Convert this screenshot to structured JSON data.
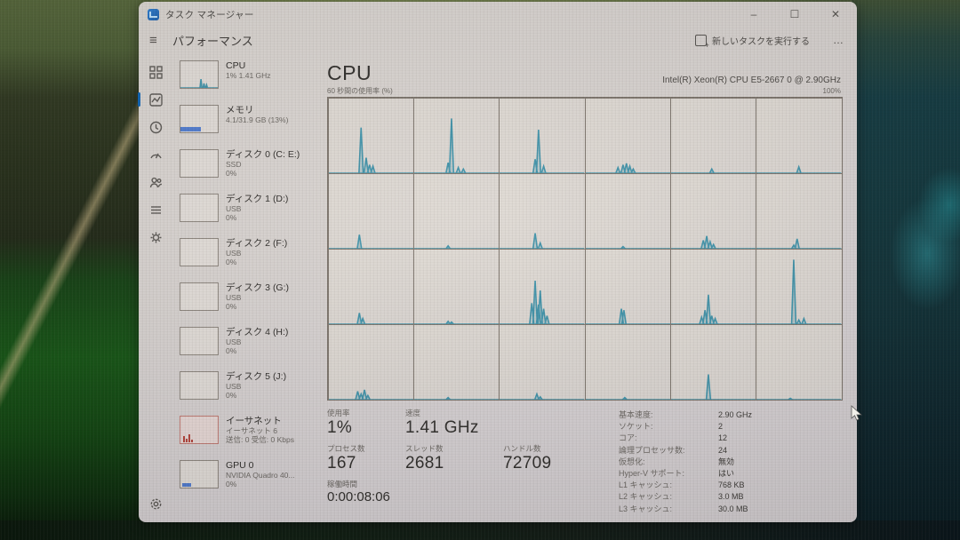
{
  "window": {
    "title": "タスク マネージャー",
    "controls": {
      "minimize": "–",
      "maximize": "☐",
      "close": "✕"
    }
  },
  "header": {
    "page_title": "パフォーマンス",
    "run_new_task_label": "新しいタスクを実行する",
    "more_label": "…"
  },
  "nav": {
    "icons": [
      "processes-grid-icon",
      "performance-chart-icon",
      "app-history-clock-icon",
      "startup-apps-icon",
      "users-icon",
      "details-list-icon",
      "services-icon",
      "settings-gear-icon"
    ],
    "active": "performance-chart-icon"
  },
  "sidebar": {
    "items": [
      {
        "id": "cpu",
        "label": "CPU",
        "line2": "1% 1.41 GHz",
        "line3": "",
        "thumb": "cpu"
      },
      {
        "id": "memory",
        "label": "メモリ",
        "line2": "4.1/31.9 GB (13%)",
        "line3": "",
        "thumb": "mem"
      },
      {
        "id": "disk0",
        "label": "ディスク 0 (C: E:)",
        "line2": "SSD",
        "line3": "0%",
        "thumb": "flat"
      },
      {
        "id": "disk1",
        "label": "ディスク 1 (D:)",
        "line2": "USB",
        "line3": "0%",
        "thumb": "flat"
      },
      {
        "id": "disk2",
        "label": "ディスク 2 (F:)",
        "line2": "USB",
        "line3": "0%",
        "thumb": "flat"
      },
      {
        "id": "disk3",
        "label": "ディスク 3 (G:)",
        "line2": "USB",
        "line3": "0%",
        "thumb": "flat"
      },
      {
        "id": "disk4",
        "label": "ディスク 4 (H:)",
        "line2": "USB",
        "line3": "0%",
        "thumb": "flat"
      },
      {
        "id": "disk5",
        "label": "ディスク 5 (J:)",
        "line2": "USB",
        "line3": "0%",
        "thumb": "flat"
      },
      {
        "id": "ethernet",
        "label": "イーサネット",
        "line2": "イーサネット 6",
        "line3": "送信: 0 受信: 0 Kbps",
        "thumb": "eth"
      },
      {
        "id": "gpu0",
        "label": "GPU 0",
        "line2": "NVIDIA Quadro 40...",
        "line3": "0%",
        "thumb": "gpu"
      }
    ]
  },
  "main": {
    "cpu_title": "CPU",
    "cpu_name": "Intel(R) Xeon(R) CPU E5-2667 0 @ 2.90GHz",
    "graph_caption": "60 秒間の使用率 (%)",
    "graph_max_label": "100%",
    "stats_left": {
      "utilization_label": "使用率",
      "utilization_value": "1%",
      "speed_label": "速度",
      "speed_value": "1.41 GHz",
      "processes_label": "プロセス数",
      "processes_value": "167",
      "threads_label": "スレッド数",
      "threads_value": "2681",
      "handles_label": "ハンドル数",
      "handles_value": "72709",
      "uptime_label": "稼働時間",
      "uptime_value": "0:00:08:06"
    },
    "stats_right": [
      {
        "label": "基本速度:",
        "value": "2.90 GHz"
      },
      {
        "label": "ソケット:",
        "value": "2"
      },
      {
        "label": "コア:",
        "value": "12"
      },
      {
        "label": "論理プロセッサ数:",
        "value": "24"
      },
      {
        "label": "仮想化:",
        "value": "無効"
      },
      {
        "label": "Hyper-V サポート:",
        "value": "はい"
      },
      {
        "label": "L1 キャッシュ:",
        "value": "768 KB"
      },
      {
        "label": "L2 キャッシュ:",
        "value": "3.0 MB"
      },
      {
        "label": "L3 キャッシュ:",
        "value": "30.0 MB"
      }
    ]
  },
  "chart_data": {
    "type": "line",
    "title": "CPU logical processor utilization, 60 s window",
    "ylim": [
      0,
      100
    ],
    "xrange_seconds": 60,
    "grid": "6x4",
    "line_color": "#3f93ab",
    "cores": [
      {
        "spikes": [
          [
            38,
            65
          ],
          [
            44,
            22
          ],
          [
            48,
            12
          ],
          [
            52,
            10
          ]
        ]
      },
      {
        "spikes": [
          [
            40,
            15
          ],
          [
            44,
            78
          ],
          [
            52,
            8
          ],
          [
            58,
            6
          ]
        ]
      },
      {
        "spikes": [
          [
            42,
            20
          ],
          [
            46,
            62
          ],
          [
            52,
            10
          ]
        ]
      },
      {
        "spikes": [
          [
            38,
            8
          ],
          [
            44,
            12
          ],
          [
            48,
            14
          ],
          [
            52,
            10
          ],
          [
            56,
            6
          ]
        ]
      },
      {
        "spikes": [
          [
            48,
            6
          ]
        ]
      },
      {
        "spikes": [
          [
            50,
            9
          ]
        ]
      },
      {
        "spikes": [
          [
            36,
            20
          ]
        ]
      },
      {
        "spikes": [
          [
            40,
            4
          ]
        ]
      },
      {
        "spikes": [
          [
            42,
            22
          ],
          [
            48,
            8
          ]
        ]
      },
      {
        "spikes": [
          [
            44,
            3
          ]
        ]
      },
      {
        "spikes": [
          [
            38,
            12
          ],
          [
            42,
            18
          ],
          [
            46,
            10
          ],
          [
            50,
            6
          ]
        ]
      },
      {
        "spikes": [
          [
            44,
            5
          ],
          [
            48,
            14
          ]
        ]
      },
      {
        "spikes": [
          [
            36,
            16
          ],
          [
            40,
            8
          ]
        ]
      },
      {
        "spikes": [
          [
            40,
            4
          ],
          [
            44,
            3
          ]
        ]
      },
      {
        "spikes": [
          [
            38,
            30
          ],
          [
            42,
            62
          ],
          [
            46,
            28
          ],
          [
            48,
            48
          ],
          [
            52,
            22
          ],
          [
            56,
            12
          ]
        ]
      },
      {
        "spikes": [
          [
            42,
            22
          ],
          [
            45,
            20
          ]
        ]
      },
      {
        "spikes": [
          [
            36,
            10
          ],
          [
            40,
            20
          ],
          [
            44,
            42
          ],
          [
            48,
            12
          ],
          [
            52,
            8
          ]
        ]
      },
      {
        "spikes": [
          [
            44,
            92
          ],
          [
            50,
            6
          ],
          [
            56,
            8
          ]
        ]
      },
      {
        "spikes": [
          [
            34,
            12
          ],
          [
            38,
            8
          ],
          [
            42,
            14
          ],
          [
            46,
            6
          ]
        ]
      },
      {
        "spikes": [
          [
            40,
            3
          ]
        ]
      },
      {
        "spikes": [
          [
            44,
            8
          ],
          [
            48,
            4
          ]
        ]
      },
      {
        "spikes": [
          [
            46,
            3
          ]
        ]
      },
      {
        "spikes": [
          [
            44,
            36
          ]
        ]
      },
      {
        "spikes": [
          [
            40,
            2
          ]
        ]
      }
    ],
    "sidebar_cpu_thumb_spikes": [
      [
        55,
        35
      ],
      [
        63,
        18
      ],
      [
        70,
        12
      ]
    ]
  }
}
